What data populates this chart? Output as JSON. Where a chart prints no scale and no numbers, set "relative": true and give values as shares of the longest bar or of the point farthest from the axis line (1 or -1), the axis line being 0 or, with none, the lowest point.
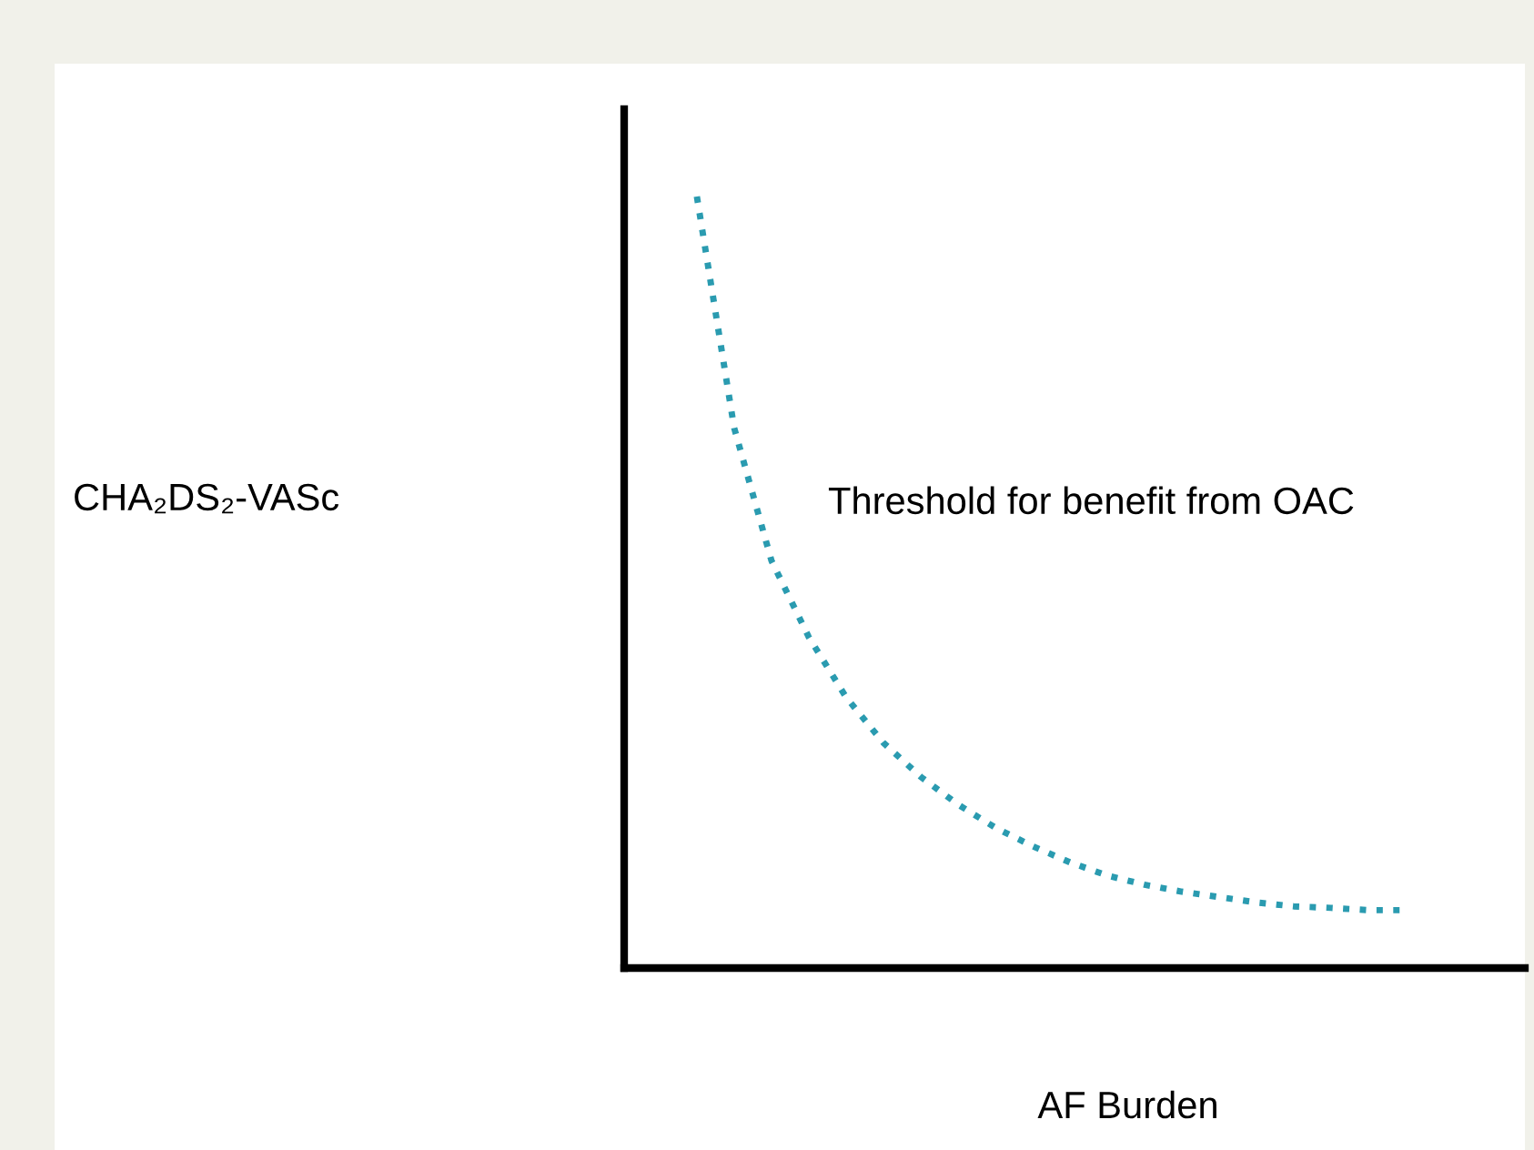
{
  "chart_data": {
    "type": "line",
    "relative": true,
    "xlabel": "AF Burden",
    "annotations": [
      "CHA₂DS₂-VASc",
      "Threshold for benefit from OAC"
    ],
    "categories": [
      null,
      null,
      null,
      null,
      null,
      null,
      null,
      null,
      null,
      null,
      null,
      null,
      null,
      null,
      null,
      null,
      null,
      null,
      null,
      null
    ],
    "series": [
      {
        "color": "#2a9bb0",
        "values": [
          1.0,
          0.7,
          0.528,
          0.429,
          0.351,
          0.292,
          0.248,
          0.212,
          0.182,
          0.158,
          0.137,
          0.12,
          0.108,
          0.099,
          0.092,
          0.085,
          0.08,
          0.078,
          0.075,
          0.075
        ]
      }
    ],
    "line_style": "dotted",
    "marker": "none",
    "grid": false,
    "legend": false
  }
}
